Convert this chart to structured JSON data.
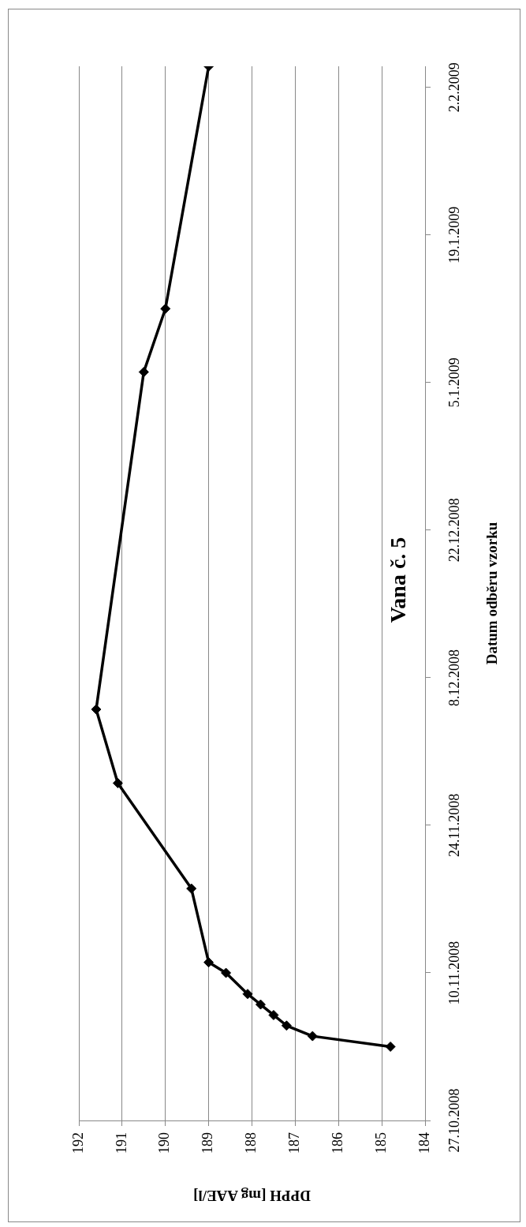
{
  "chart_data": {
    "type": "line",
    "orientation": "horizontal",
    "title": "Vana č. 5",
    "xlabel": "DPPH [mg AAE/l]",
    "ylabel": "Datum odběru vzorku",
    "x": [
      "2008-11-03",
      "2008-11-04",
      "2008-11-05",
      "2008-11-06",
      "2008-11-07",
      "2008-11-08",
      "2008-11-10",
      "2008-11-11",
      "2008-11-18",
      "2008-11-28",
      "2008-12-05",
      "2009-01-06",
      "2009-01-12",
      "2009-02-04"
    ],
    "values": [
      184.8,
      186.6,
      187.2,
      187.5,
      187.8,
      188.1,
      188.6,
      189.0,
      189.4,
      191.1,
      191.6,
      190.5,
      190.0,
      189.0
    ],
    "color": "#000000",
    "xlim": [
      192,
      184
    ],
    "xticks": [
      192,
      191,
      190,
      189,
      188,
      187,
      186,
      185,
      184
    ],
    "ylim": [
      "2008-10-27",
      "2009-02-04"
    ],
    "yticks": [
      {
        "value": "2008-10-27",
        "label": "27.10.2008"
      },
      {
        "value": "2008-11-10",
        "label": "10.11.2008"
      },
      {
        "value": "2008-11-24",
        "label": "24.11.2008"
      },
      {
        "value": "2008-12-08",
        "label": "8.12.2008"
      },
      {
        "value": "2008-12-22",
        "label": "22.12.2008"
      },
      {
        "value": "2009-01-05",
        "label": "5.1.2009"
      },
      {
        "value": "2009-01-19",
        "label": "19.1.2009"
      },
      {
        "value": "2009-02-02",
        "label": "2.2.2009"
      }
    ],
    "grid": "x",
    "marker": "diamond"
  }
}
